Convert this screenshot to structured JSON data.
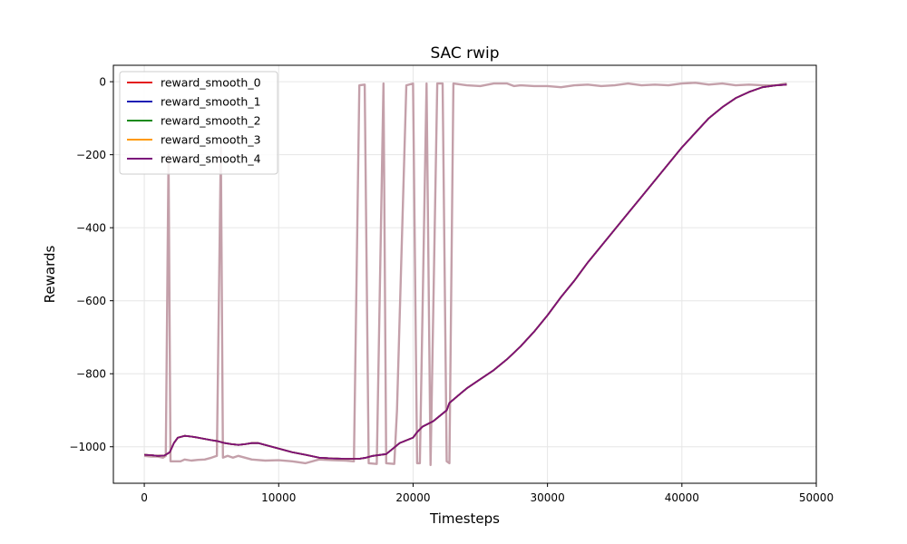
{
  "chart_data": {
    "type": "line",
    "title": "SAC rwip",
    "xlabel": "Timesteps",
    "ylabel": "Rewards",
    "xlim": [
      -2300,
      50000
    ],
    "ylim": [
      -1100,
      45
    ],
    "xticks": [
      0,
      10000,
      20000,
      30000,
      40000,
      50000
    ],
    "xtick_labels": [
      "0",
      "10000",
      "20000",
      "30000",
      "40000",
      "50000"
    ],
    "yticks": [
      0,
      -200,
      -400,
      -600,
      -800,
      -1000
    ],
    "ytick_labels": [
      "0",
      "−200",
      "−400",
      "−600",
      "−800",
      "−1000"
    ],
    "grid": true,
    "legend_position": "top-left",
    "raw_series": {
      "color": "#c4a0aa",
      "points": [
        [
          0,
          -1025
        ],
        [
          500,
          -1027
        ],
        [
          1000,
          -1027
        ],
        [
          1400,
          -1030
        ],
        [
          1600,
          -1025
        ],
        [
          1800,
          -200
        ],
        [
          1950,
          -1040
        ],
        [
          2300,
          -1040
        ],
        [
          2700,
          -1040
        ],
        [
          3000,
          -1035
        ],
        [
          3500,
          -1038
        ],
        [
          4000,
          -1036
        ],
        [
          4500,
          -1035
        ],
        [
          5000,
          -1030
        ],
        [
          5400,
          -1025
        ],
        [
          5700,
          -180
        ],
        [
          5850,
          -1030
        ],
        [
          6200,
          -1025
        ],
        [
          6600,
          -1030
        ],
        [
          7000,
          -1025
        ],
        [
          7500,
          -1030
        ],
        [
          8000,
          -1035
        ],
        [
          9000,
          -1038
        ],
        [
          10000,
          -1037
        ],
        [
          11000,
          -1040
        ],
        [
          12000,
          -1045
        ],
        [
          13000,
          -1035
        ],
        [
          14000,
          -1037
        ],
        [
          15000,
          -1038
        ],
        [
          15600,
          -1040
        ],
        [
          16000,
          -10
        ],
        [
          16400,
          -8
        ],
        [
          16700,
          -1045
        ],
        [
          17300,
          -1047
        ],
        [
          17800,
          -5
        ],
        [
          18000,
          -1045
        ],
        [
          18600,
          -1047
        ],
        [
          18800,
          -900
        ],
        [
          19500,
          -10
        ],
        [
          20000,
          -5
        ],
        [
          20300,
          -1045
        ],
        [
          20500,
          -1045
        ],
        [
          21000,
          -5
        ],
        [
          21300,
          -1050
        ],
        [
          21800,
          -5
        ],
        [
          22200,
          -5
        ],
        [
          22500,
          -1040
        ],
        [
          22700,
          -1045
        ],
        [
          23000,
          -5
        ],
        [
          24000,
          -10
        ],
        [
          25000,
          -12
        ],
        [
          26000,
          -5
        ],
        [
          27000,
          -5
        ],
        [
          27500,
          -12
        ],
        [
          28000,
          -10
        ],
        [
          29000,
          -12
        ],
        [
          30000,
          -12
        ],
        [
          31000,
          -15
        ],
        [
          32000,
          -10
        ],
        [
          33000,
          -8
        ],
        [
          34000,
          -12
        ],
        [
          35000,
          -10
        ],
        [
          36000,
          -5
        ],
        [
          37000,
          -10
        ],
        [
          38000,
          -8
        ],
        [
          39000,
          -10
        ],
        [
          40000,
          -5
        ],
        [
          41000,
          -3
        ],
        [
          42000,
          -8
        ],
        [
          43000,
          -5
        ],
        [
          44000,
          -10
        ],
        [
          45000,
          -8
        ],
        [
          46000,
          -10
        ],
        [
          47000,
          -10
        ],
        [
          47800,
          -5
        ]
      ]
    },
    "series": [
      {
        "name": "reward_smooth_0",
        "color": "#e41a1c",
        "points": [
          [
            0,
            -1022
          ],
          [
            500,
            -1023
          ],
          [
            1000,
            -1025
          ],
          [
            1500,
            -1024
          ],
          [
            1900,
            -1015
          ],
          [
            2200,
            -990
          ],
          [
            2500,
            -975
          ],
          [
            3000,
            -970
          ],
          [
            3500,
            -972
          ],
          [
            4000,
            -975
          ],
          [
            5000,
            -982
          ],
          [
            5500,
            -985
          ],
          [
            6000,
            -990
          ],
          [
            6500,
            -993
          ],
          [
            7000,
            -995
          ],
          [
            7500,
            -993
          ],
          [
            8000,
            -990
          ],
          [
            8500,
            -990
          ],
          [
            9000,
            -995
          ],
          [
            10000,
            -1005
          ],
          [
            11000,
            -1015
          ],
          [
            12000,
            -1022
          ],
          [
            13000,
            -1030
          ],
          [
            14000,
            -1032
          ],
          [
            15000,
            -1033
          ],
          [
            16000,
            -1033
          ],
          [
            16500,
            -1030
          ],
          [
            17000,
            -1025
          ],
          [
            18000,
            -1020
          ],
          [
            18500,
            -1005
          ],
          [
            19000,
            -990
          ],
          [
            20000,
            -975
          ],
          [
            20300,
            -960
          ],
          [
            20700,
            -945
          ],
          [
            21500,
            -930
          ],
          [
            22500,
            -900
          ],
          [
            22700,
            -880
          ],
          [
            23500,
            -855
          ],
          [
            24000,
            -840
          ],
          [
            25000,
            -815
          ],
          [
            26000,
            -790
          ],
          [
            27000,
            -760
          ],
          [
            28000,
            -725
          ],
          [
            29000,
            -685
          ],
          [
            30000,
            -640
          ],
          [
            31000,
            -590
          ],
          [
            32000,
            -545
          ],
          [
            33000,
            -495
          ],
          [
            34000,
            -450
          ],
          [
            35000,
            -405
          ],
          [
            36000,
            -360
          ],
          [
            37000,
            -315
          ],
          [
            38000,
            -270
          ],
          [
            39000,
            -225
          ],
          [
            40000,
            -180
          ],
          [
            41000,
            -140
          ],
          [
            42000,
            -100
          ],
          [
            43000,
            -70
          ],
          [
            44000,
            -45
          ],
          [
            45000,
            -28
          ],
          [
            46000,
            -15
          ],
          [
            47000,
            -10
          ],
          [
            47800,
            -8
          ]
        ]
      },
      {
        "name": "reward_smooth_1",
        "color": "#1f1fb4",
        "same_as": 0
      },
      {
        "name": "reward_smooth_2",
        "color": "#1a8a1a",
        "same_as": 0
      },
      {
        "name": "reward_smooth_3",
        "color": "#ff9900",
        "same_as": 0
      },
      {
        "name": "reward_smooth_4",
        "color": "#7b0f7b",
        "same_as": 0
      }
    ]
  }
}
